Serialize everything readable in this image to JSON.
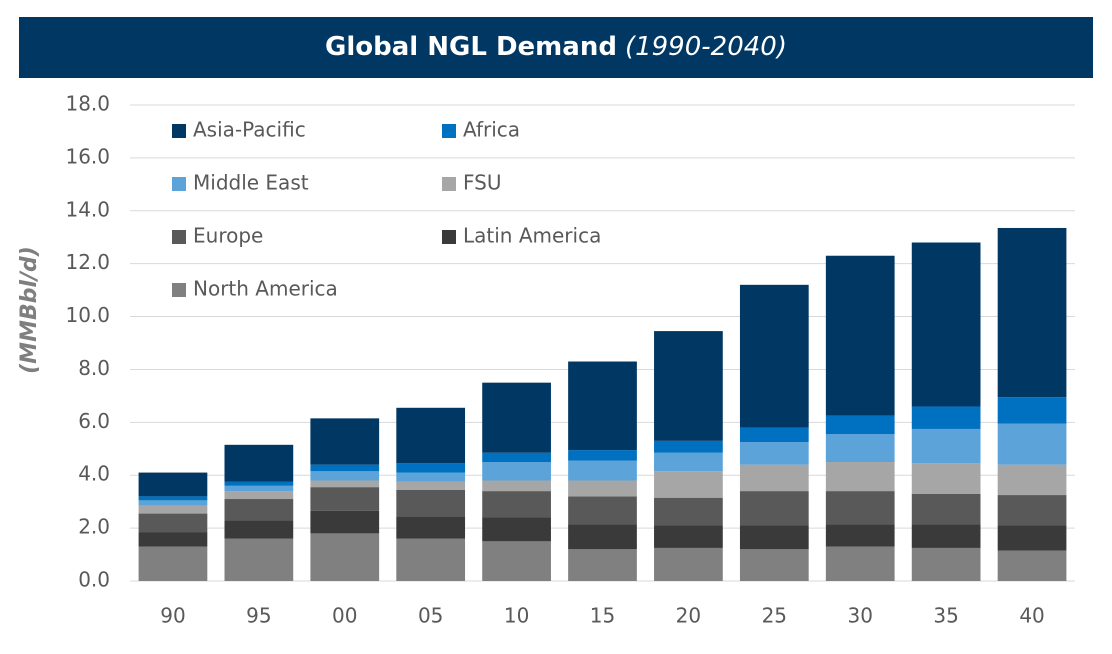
{
  "chart_data": {
    "type": "stacked_bar",
    "title": "Global NGL Demand",
    "subtitle": "(1990-2040)",
    "y_label": "(MMBbl/d)",
    "categories": [
      "90",
      "95",
      "00",
      "05",
      "10",
      "15",
      "20",
      "25",
      "30",
      "35",
      "40"
    ],
    "series": [
      {
        "name": "North America",
        "color": "#808080",
        "values": [
          1.3,
          1.6,
          1.8,
          1.6,
          1.5,
          1.2,
          1.25,
          1.2,
          1.3,
          1.25,
          1.15
        ]
      },
      {
        "name": "Latin America",
        "color": "#3a3a3a",
        "values": [
          0.55,
          0.7,
          0.85,
          0.85,
          0.9,
          0.95,
          0.85,
          0.9,
          0.85,
          0.9,
          0.95
        ]
      },
      {
        "name": "Europe",
        "color": "#595959",
        "values": [
          0.7,
          0.8,
          0.9,
          1.0,
          1.0,
          1.05,
          1.05,
          1.3,
          1.25,
          1.15,
          1.15
        ]
      },
      {
        "name": "FSU",
        "color": "#a6a6a6",
        "values": [
          0.3,
          0.3,
          0.25,
          0.3,
          0.4,
          0.6,
          1.0,
          1.0,
          1.1,
          1.15,
          1.15
        ]
      },
      {
        "name": "Middle East",
        "color": "#5ba3d9",
        "values": [
          0.2,
          0.2,
          0.35,
          0.35,
          0.7,
          0.75,
          0.7,
          0.85,
          1.05,
          1.3,
          1.55
        ]
      },
      {
        "name": "Africa",
        "color": "#0070c0",
        "values": [
          0.15,
          0.15,
          0.25,
          0.35,
          0.35,
          0.4,
          0.45,
          0.55,
          0.7,
          0.85,
          1.0
        ]
      },
      {
        "name": "Asia-Pacific",
        "color": "#003763",
        "values": [
          0.9,
          1.4,
          1.75,
          2.1,
          2.65,
          3.35,
          4.15,
          5.4,
          6.05,
          6.2,
          6.4
        ]
      }
    ],
    "ylim": [
      0,
      18
    ],
    "yticks": [
      {
        "value": 0,
        "label": "0.0"
      },
      {
        "value": 2,
        "label": "2.0"
      },
      {
        "value": 4,
        "label": "4.0"
      },
      {
        "value": 6,
        "label": "6.0"
      },
      {
        "value": 8,
        "label": "8.0"
      },
      {
        "value": 10,
        "label": "10.0"
      },
      {
        "value": 12,
        "label": "12.0"
      },
      {
        "value": 14,
        "label": "14.0"
      },
      {
        "value": 16,
        "label": "16.0"
      },
      {
        "value": 18,
        "label": "18.0"
      }
    ],
    "grid": true,
    "legend": "top-left"
  }
}
